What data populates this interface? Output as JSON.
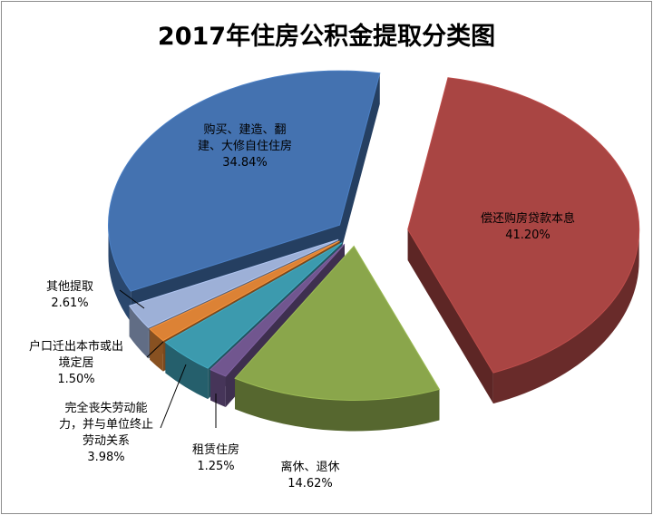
{
  "chart_data": {
    "type": "pie",
    "title": "2017年住房公积金提取分类图",
    "slices": [
      {
        "label_lines": [
          "偿还购房贷款本息"
        ],
        "value": 41.2,
        "value_text": "41.20%",
        "color": "#A94543"
      },
      {
        "label_lines": [
          "离休、退休"
        ],
        "value": 14.62,
        "value_text": "14.62%",
        "color": "#8AA64B"
      },
      {
        "label_lines": [
          "租赁住房"
        ],
        "value": 1.25,
        "value_text": "1.25%",
        "color": "#71568F"
      },
      {
        "label_lines": [
          "完全丧失劳动能",
          "力，并与单位终止",
          "劳动关系"
        ],
        "value": 3.98,
        "value_text": "3.98%",
        "color": "#3C9AAE"
      },
      {
        "label_lines": [
          "户口迁出本市或出",
          "境定居"
        ],
        "value": 1.5,
        "value_text": "1.50%",
        "color": "#DC8235"
      },
      {
        "label_lines": [
          "其他提取"
        ],
        "value": 2.61,
        "value_text": "2.61%",
        "color": "#9DB0D7"
      },
      {
        "label_lines": [
          "购买、建造、翻",
          "建、大修自住住房"
        ],
        "value": 34.84,
        "value_text": "34.84%",
        "color": "#4472B0"
      }
    ]
  }
}
